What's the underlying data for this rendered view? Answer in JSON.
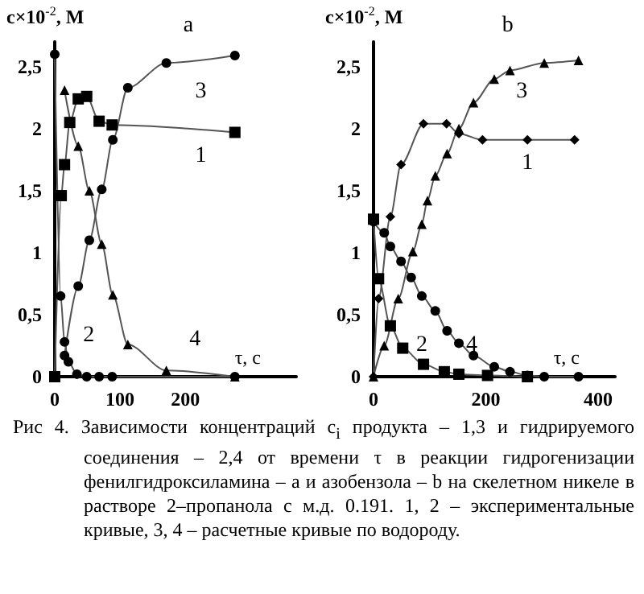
{
  "chart_data": [
    {
      "type": "line",
      "title": "a",
      "xlabel": "τ, c",
      "ylabel": "c×10$^{-2}$, M",
      "xlim": [
        0,
        370
      ],
      "xticks": [
        0,
        100,
        200
      ],
      "ylim": [
        0,
        2.7
      ],
      "yticks": [
        0,
        {
          "value": 0.5,
          "label": "0,5"
        },
        1,
        {
          "value": 1.5,
          "label": "1,5"
        },
        2,
        {
          "value": 2.5,
          "label": "2,5"
        }
      ],
      "grid": false,
      "legend": false,
      "series": [
        {
          "name": "1",
          "color": "#000000",
          "marker": "square",
          "x": [
            0,
            10,
            15,
            23,
            36,
            49,
            68,
            88,
            276
          ],
          "values": [
            0,
            1.46,
            1.71,
            2.05,
            2.24,
            2.26,
            2.06,
            2.03,
            1.97
          ]
        },
        {
          "name": "2",
          "color": "#000000",
          "marker": "circle",
          "x": [
            0,
            9,
            15,
            21,
            34,
            49,
            68,
            88,
            276
          ],
          "values": [
            2.6,
            0.65,
            0.28,
            0.12,
            0.02,
            0,
            0,
            0,
            0
          ]
        },
        {
          "name": "3",
          "color": "#000000",
          "marker": "circle",
          "x": [
            15,
            36,
            53,
            72,
            89,
            112,
            171,
            276
          ],
          "values": [
            0.17,
            0.73,
            1.1,
            1.51,
            1.91,
            2.33,
            2.53,
            2.59
          ]
        },
        {
          "name": "4",
          "color": "#000000",
          "marker": "triangle",
          "x": [
            15,
            36,
            53,
            72,
            89,
            112,
            171,
            276
          ],
          "values": [
            2.31,
            1.86,
            1.5,
            1.07,
            0.66,
            0.26,
            0.05,
            0
          ]
        }
      ],
      "annotations": [
        "Рис 4. Зависимости концентраций c$_{i}$ продукта – 1,3 и гидрируемого соединения – 2,4 от времени τ в реакции гидрогенизации фенилгидроксиламина – a и азобензола – b на скелетном никеле в растворе 2–пропанола с м.д. 0.191.   1, 2 – экспериментальные кривые, 3, 4 – расчетные кривые по водороду."
      ]
    },
    {
      "type": "line",
      "title": "b",
      "xlabel": "τ, c",
      "ylabel": "c×10$^{-2}$, M",
      "xlim": [
        0,
        430
      ],
      "xticks": [
        0,
        200,
        400
      ],
      "ylim": [
        0,
        2.7
      ],
      "yticks": [
        0,
        {
          "value": 0.5,
          "label": "0,5"
        },
        1,
        {
          "value": 1.5,
          "label": "1,5"
        },
        2,
        {
          "value": 2.5,
          "label": "2,5"
        }
      ],
      "grid": false,
      "legend": false,
      "series": [
        {
          "name": "1",
          "color": "#000000",
          "marker": "diamond",
          "x": [
            0,
            9,
            30,
            49,
            89,
            130,
            152,
            194,
            274,
            358
          ],
          "values": [
            0,
            0.63,
            1.29,
            1.71,
            2.04,
            2.04,
            1.96,
            1.91,
            1.91,
            1.91
          ]
        },
        {
          "name": "2",
          "color": "#000000",
          "marker": "square",
          "x": [
            0,
            9,
            30,
            52,
            89,
            126,
            152,
            203,
            274
          ],
          "values": [
            1.27,
            0.79,
            0.41,
            0.23,
            0.1,
            0.04,
            0.02,
            0.01,
            0
          ]
        },
        {
          "name": "3",
          "color": "#000000",
          "marker": "triangle",
          "x": [
            0,
            19,
            44,
            70,
            86,
            96,
            110,
            131,
            152,
            178,
            215,
            243,
            304,
            365
          ],
          "values": [
            0,
            0.25,
            0.63,
            1.01,
            1.23,
            1.42,
            1.62,
            1.8,
            2,
            2.21,
            2.4,
            2.47,
            2.53,
            2.55
          ]
        },
        {
          "name": "4",
          "color": "#000000",
          "marker": "circle",
          "x": [
            0,
            19,
            30,
            49,
            67,
            86,
            110,
            131,
            152,
            178,
            215,
            243,
            274,
            304,
            365
          ],
          "values": [
            1.25,
            1.16,
            1.05,
            0.93,
            0.8,
            0.65,
            0.53,
            0.37,
            0.27,
            0.17,
            0.08,
            0.04,
            0.01,
            0,
            0
          ]
        }
      ]
    }
  ]
}
